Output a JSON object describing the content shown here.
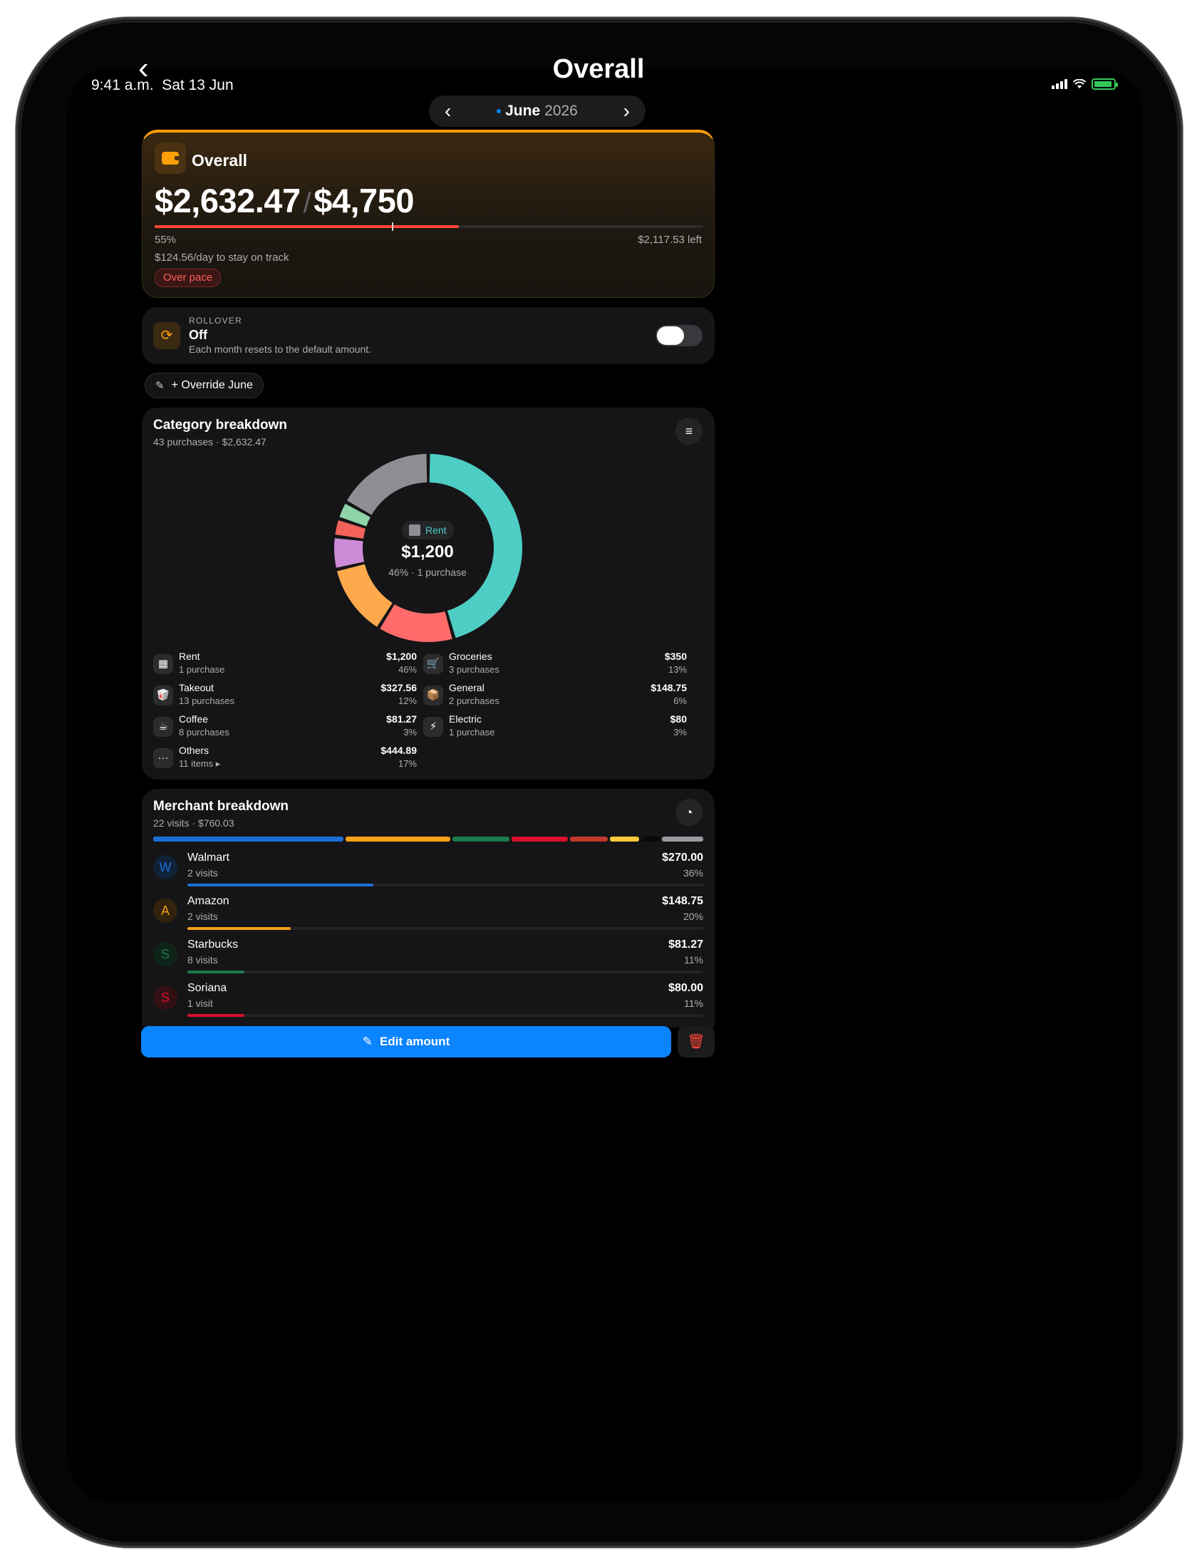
{
  "status": {
    "time": "9:41 a.m.",
    "date": "Sat 13 Jun"
  },
  "header": {
    "title": "Overall",
    "month": "June",
    "year": "2026"
  },
  "overall": {
    "name": "Overall",
    "spent": "$2,632.47",
    "separator": "/",
    "budget": "$4,750",
    "percent_label": "55%",
    "progress_fraction": 0.554,
    "pace_marker_fraction": 0.433,
    "left": "$2,117.53 left",
    "per_day": "$124.56/day to stay on track",
    "badge": "Over pace",
    "colors": {
      "accent": "#ff9f0a",
      "over": "#ff453a"
    }
  },
  "rollover": {
    "caption": "ROLLOVER",
    "value": "Off",
    "description": "Each month resets to the default amount.",
    "enabled": false
  },
  "override": {
    "label": "+ Override June",
    "icon": "pencil-icon"
  },
  "category": {
    "title": "Category breakdown",
    "subtitle": "43 purchases · $2,632.47",
    "center": {
      "icon": "building-icon",
      "name": "Rent",
      "amount": "$1,200",
      "detail": "46% · 1 purchase"
    },
    "chart_data": {
      "type": "pie",
      "categories": [
        "Rent",
        "Groceries",
        "Takeout",
        "General",
        "Coffee",
        "Electric",
        "Others"
      ],
      "values": [
        1200,
        350,
        327.56,
        148.75,
        81.27,
        80,
        444.89
      ],
      "colors": [
        "#4ecdc4",
        "#ff6b6b",
        "#ffa94d",
        "#cc8bd6",
        "#f2625a",
        "#8fd3a8",
        "#8e8e93"
      ]
    },
    "items": [
      {
        "name": "Rent",
        "sub": "1 purchase",
        "amount": "$1,200",
        "pct": "46%",
        "icon": "building-icon"
      },
      {
        "name": "Groceries",
        "sub": "3 purchases",
        "amount": "$350",
        "pct": "13%",
        "icon": "cart-icon"
      },
      {
        "name": "Takeout",
        "sub": "13 purchases",
        "amount": "$327.56",
        "pct": "12%",
        "icon": "takeout-box-icon"
      },
      {
        "name": "General",
        "sub": "2 purchases",
        "amount": "$148.75",
        "pct": "6%",
        "icon": "package-icon"
      },
      {
        "name": "Coffee",
        "sub": "8 purchases",
        "amount": "$81.27",
        "pct": "3%",
        "icon": "coffee-icon"
      },
      {
        "name": "Electric",
        "sub": "1 purchase",
        "amount": "$80",
        "pct": "3%",
        "icon": "lightning-icon"
      },
      {
        "name": "Others",
        "sub": "11 items ▸",
        "amount": "$444.89",
        "pct": "17%",
        "icon": "ellipsis-icon"
      }
    ]
  },
  "merchant": {
    "title": "Merchant breakdown",
    "subtitle": "22 visits · $760.03",
    "stack_colors": [
      "#1a6fd6",
      "#f5a014",
      "#1b7a4a",
      "#d7102c",
      "#c0392b",
      "#ffc93c",
      "#0a0a0a",
      "#9a9a9e"
    ],
    "stack_fractions": [
      0.355,
      0.196,
      0.107,
      0.105,
      0.07,
      0.055,
      0.035,
      0.077
    ],
    "items": [
      {
        "initial": "W",
        "name": "Walmart",
        "sub": "2 visits",
        "amount": "$270.00",
        "pct": "36%",
        "fraction": 0.36,
        "color": "#1a6fd6",
        "bg": "#0f2238"
      },
      {
        "initial": "A",
        "name": "Amazon",
        "sub": "2 visits",
        "amount": "$148.75",
        "pct": "20%",
        "fraction": 0.2,
        "color": "#f5a014",
        "bg": "#33230c"
      },
      {
        "initial": "S",
        "name": "Starbucks",
        "sub": "8 visits",
        "amount": "$81.27",
        "pct": "11%",
        "fraction": 0.11,
        "color": "#1b7a4a",
        "bg": "#0f2419"
      },
      {
        "initial": "S",
        "name": "Soriana",
        "sub": "1 visit",
        "amount": "$80.00",
        "pct": "11%",
        "fraction": 0.11,
        "color": "#d7102c",
        "bg": "#331014"
      }
    ]
  },
  "actions": {
    "edit_label": "Edit amount",
    "edit_icon": "pencil-icon",
    "delete_icon": "trash-icon"
  }
}
